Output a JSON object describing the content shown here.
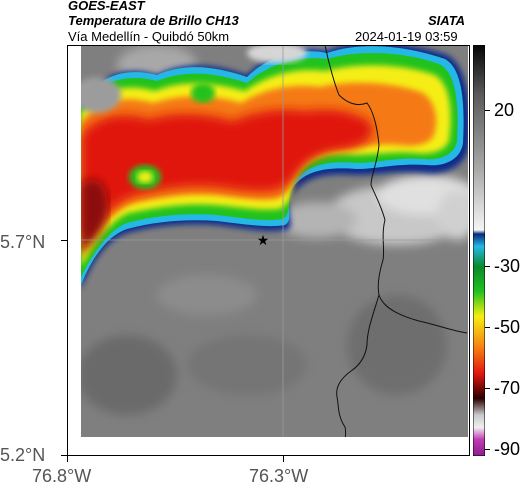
{
  "header": {
    "satellite": "GOES-EAST",
    "product": "Temperatura de Brillo CH13",
    "route": "Vía Medellín - Quibdó 50km",
    "org": "SIATA",
    "datetime": "2024-01-19 03:59"
  },
  "map": {
    "lat_labels": [
      "5.7°N",
      "5.2°N"
    ],
    "lon_labels": [
      "76.8°W",
      "76.3°W"
    ],
    "marker": "star-marker",
    "colors": {
      "warm": "#7a7a7a",
      "cold_edge": "#0b2c8a",
      "green": "#22c21e",
      "yellow": "#f5ee12",
      "orange": "#f57a12",
      "red": "#e01810",
      "dark_red": "#8a0a0a"
    }
  },
  "colorbar": {
    "labels": [
      "20",
      "-30",
      "-50",
      "-70",
      "-90"
    ]
  }
}
